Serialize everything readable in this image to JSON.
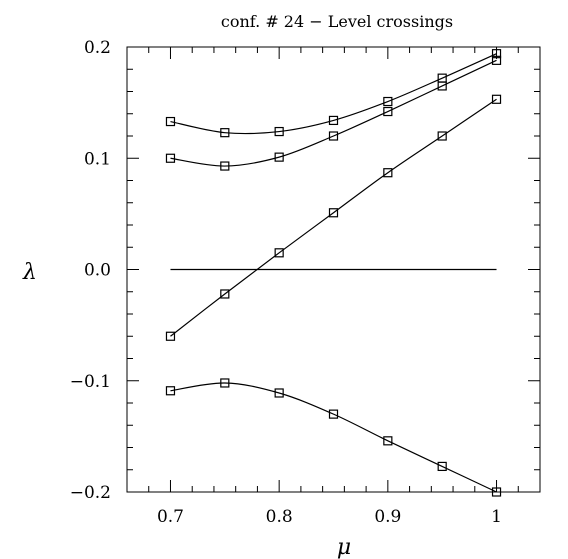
{
  "chart_data": {
    "type": "scatter",
    "title": "conf. #  24 − Level crossings",
    "xlabel": "μ",
    "ylabel": "λ",
    "xlim": [
      0.66,
      1.04
    ],
    "ylim": [
      -0.2,
      0.2
    ],
    "xticks": [
      0.7,
      0.8,
      0.9,
      1.0
    ],
    "xtick_labels": [
      "0.7",
      "0.8",
      "0.9",
      "1"
    ],
    "yticks": [
      -0.2,
      -0.1,
      0.0,
      0.1,
      0.2
    ],
    "ytick_labels": [
      "−0.2",
      "−0.1",
      "0.0",
      "0.1",
      "0.2"
    ],
    "grid": false,
    "marker": "open-square",
    "zero_line": {
      "y": 0.0,
      "x_range": [
        0.7,
        1.0
      ]
    },
    "x": [
      0.7,
      0.75,
      0.8,
      0.85,
      0.9,
      0.95,
      1.0
    ],
    "series": [
      {
        "values": [
          0.133,
          0.123,
          0.124,
          0.134,
          0.151,
          0.172,
          0.194
        ]
      },
      {
        "values": [
          0.1,
          0.093,
          0.101,
          0.12,
          0.142,
          0.165,
          0.188
        ]
      },
      {
        "values": [
          -0.06,
          -0.022,
          0.015,
          0.051,
          0.087,
          0.12,
          0.153
        ]
      },
      {
        "values": [
          -0.109,
          -0.102,
          -0.111,
          -0.13,
          -0.154,
          -0.177,
          -0.2
        ]
      }
    ]
  }
}
